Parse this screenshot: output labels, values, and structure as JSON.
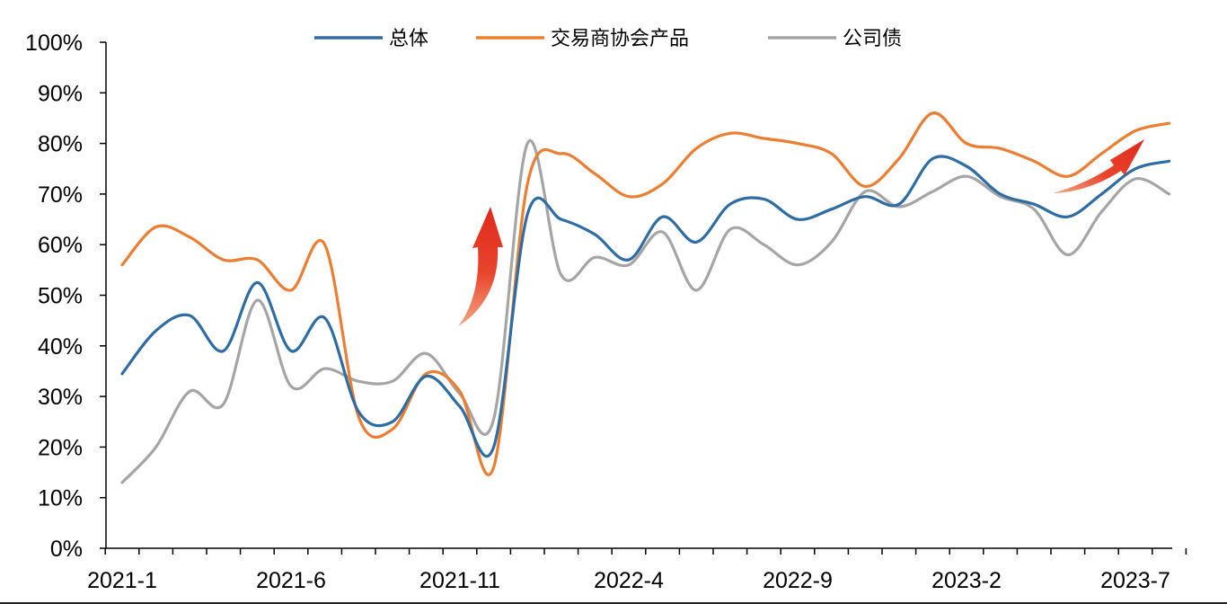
{
  "chart_data": {
    "type": "line",
    "ylim": [
      0,
      100
    ],
    "y_ticks": [
      "0%",
      "10%",
      "20%",
      "30%",
      "40%",
      "50%",
      "60%",
      "70%",
      "80%",
      "90%",
      "100%"
    ],
    "x_tick_labels": [
      "2021-1",
      "2021-6",
      "2021-11",
      "2022-4",
      "2022-9",
      "2023-2",
      "2023-7"
    ],
    "categories": [
      "2021-1",
      "2021-2",
      "2021-3",
      "2021-4",
      "2021-5",
      "2021-6",
      "2021-7",
      "2021-8",
      "2021-9",
      "2021-10",
      "2021-11",
      "2021-12",
      "2022-1",
      "2022-2",
      "2022-3",
      "2022-4",
      "2022-5",
      "2022-6",
      "2022-7",
      "2022-8",
      "2022-9",
      "2022-10",
      "2022-11",
      "2022-12",
      "2023-1",
      "2023-2",
      "2023-3",
      "2023-4",
      "2023-5",
      "2023-6",
      "2023-7",
      "2023-8"
    ],
    "legend_position": "top-center",
    "grid": false,
    "series": [
      {
        "name": "总体",
        "color": "#2E6DA4",
        "values": [
          34.5,
          43,
          46,
          39,
          52.5,
          39,
          45.5,
          27,
          25,
          34,
          28,
          20,
          66,
          65,
          62,
          57,
          65.5,
          60.5,
          68,
          69,
          65,
          67,
          69.5,
          68,
          77,
          75.5,
          70,
          68,
          65.5,
          70,
          75,
          76.5
        ]
      },
      {
        "name": "交易商协会产品",
        "color": "#ED7D31",
        "values": [
          56,
          63.5,
          61.5,
          57,
          57,
          51,
          60,
          26,
          23.5,
          34.5,
          31,
          16,
          72,
          78,
          74,
          69.5,
          72,
          79,
          82,
          81,
          80,
          78,
          71.5,
          77,
          86,
          80,
          79,
          76.5,
          73.5,
          78,
          82.5,
          84
        ]
      },
      {
        "name": "公司债",
        "color": "#A5A5A5",
        "values": [
          13,
          20,
          31,
          28.5,
          49,
          32,
          35.5,
          33,
          33,
          38.5,
          30.5,
          25.5,
          80,
          54,
          57.5,
          56,
          62.5,
          51,
          63,
          60,
          56,
          60.5,
          70.5,
          67.5,
          70.5,
          73.5,
          69.5,
          67,
          58,
          66.5,
          73,
          70
        ]
      }
    ],
    "annotations": [
      "red-arrow-up",
      "red-arrow-up-right"
    ]
  }
}
